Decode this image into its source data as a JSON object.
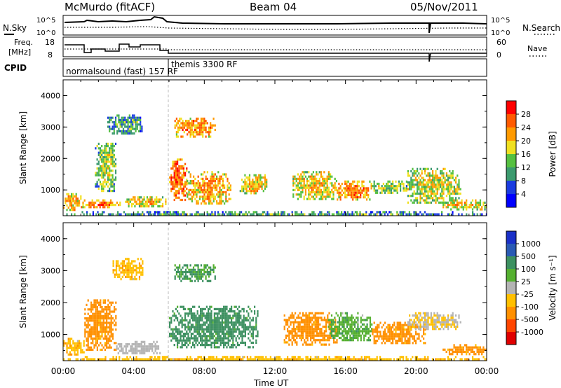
{
  "header": {
    "station": "McMurdo (fitACF)",
    "beam": "Beam 04",
    "date": "05/Nov/2011"
  },
  "noise_panel": {
    "left_label": "N.Sky",
    "right_label": "N.Search",
    "left_ticks": [
      "10^5",
      "10^0"
    ],
    "right_ticks": [
      "10^5",
      "10^0"
    ]
  },
  "freq_panel": {
    "left_label_1": "Freq.",
    "left_label_2": "[MHz]",
    "left_ticks": [
      "18",
      "8"
    ],
    "right_ticks": [
      "60",
      "0"
    ],
    "right_label": "Nave"
  },
  "cpid_panel": {
    "label": "CPID",
    "modes": [
      {
        "name": "normalsound (fast) 157 RF"
      },
      {
        "name": "themis 3300 RF"
      }
    ]
  },
  "colors": {
    "power": [
      "#0000ff",
      "#1a3ce0",
      "#3b9a6e",
      "#55c040",
      "#f0e020",
      "#ff9a00",
      "#ff5a00",
      "#ff0000"
    ],
    "velocity": [
      "#e00000",
      "#ff4500",
      "#ff9000",
      "#ffc000",
      "#b4b4b4",
      "#55b030",
      "#3c9060",
      "#2a5ab4",
      "#1a30c8"
    ]
  },
  "chart_data": [
    {
      "type": "heatmap",
      "title": "",
      "xlabel": "",
      "ylabel": "Slant Range [km]",
      "colorbar_label": "Power [dB]",
      "colorbar_ticks": [
        "28",
        "24",
        "20",
        "16",
        "12",
        "8",
        "4"
      ],
      "x_ticks": [
        "00:00",
        "04:00",
        "08:00",
        "12:00",
        "16:00",
        "20:00",
        "00:00"
      ],
      "y_ticks": [
        "1000",
        "2000",
        "3000",
        "4000"
      ],
      "xlim": [
        0,
        24
      ],
      "ylim": [
        180,
        4500
      ],
      "scatter_patches": [
        {
          "t0": 0.0,
          "t1": 1.0,
          "r0": 400,
          "r1": 900,
          "dB": 16
        },
        {
          "t0": 1.0,
          "t1": 3.2,
          "r0": 450,
          "r1": 700,
          "dB": 18
        },
        {
          "t0": 1.8,
          "t1": 3.0,
          "r0": 1000,
          "r1": 2500,
          "dB": 10
        },
        {
          "t0": 2.5,
          "t1": 4.5,
          "r0": 2800,
          "r1": 3400,
          "dB": 6
        },
        {
          "t0": 3.5,
          "t1": 5.8,
          "r0": 500,
          "r1": 800,
          "dB": 14
        },
        {
          "t0": 6.0,
          "t1": 7.0,
          "r0": 700,
          "r1": 2000,
          "dB": 20
        },
        {
          "t0": 6.3,
          "t1": 8.6,
          "r0": 2700,
          "r1": 3300,
          "dB": 18
        },
        {
          "t0": 7.0,
          "t1": 9.5,
          "r0": 600,
          "r1": 1600,
          "dB": 16
        },
        {
          "t0": 10.0,
          "t1": 11.5,
          "r0": 900,
          "r1": 1500,
          "dB": 14
        },
        {
          "t0": 13.0,
          "t1": 15.5,
          "r0": 700,
          "r1": 1600,
          "dB": 14
        },
        {
          "t0": 15.5,
          "t1": 17.5,
          "r0": 700,
          "r1": 1300,
          "dB": 18
        },
        {
          "t0": 17.5,
          "t1": 19.5,
          "r0": 900,
          "r1": 1300,
          "dB": 10
        },
        {
          "t0": 19.5,
          "t1": 22.5,
          "r0": 600,
          "r1": 1700,
          "dB": 12
        },
        {
          "t0": 21.5,
          "t1": 24.0,
          "r0": 400,
          "r1": 700,
          "dB": 14
        },
        {
          "t0": 0.0,
          "t1": 24.0,
          "r0": 200,
          "r1": 330,
          "dB": 6
        }
      ]
    },
    {
      "type": "heatmap",
      "title": "",
      "xlabel": "Time UT",
      "ylabel": "Slant Range [km]",
      "colorbar_label": "Velocity [m s⁻¹]",
      "colorbar_ticks": [
        "1000",
        "500",
        "100",
        "25",
        "-25",
        "-100",
        "-500",
        "-1000"
      ],
      "x_ticks": [
        "00:00",
        "04:00",
        "08:00",
        "12:00",
        "16:00",
        "20:00",
        "00:00"
      ],
      "y_ticks": [
        "1000",
        "2000",
        "3000",
        "4000"
      ],
      "xlim": [
        0,
        24
      ],
      "ylim": [
        180,
        4500
      ],
      "scatter_patches": [
        {
          "t0": 0.0,
          "t1": 1.2,
          "r0": 400,
          "r1": 900,
          "v": -60
        },
        {
          "t0": 1.2,
          "t1": 3.0,
          "r0": 500,
          "r1": 2100,
          "v": -150
        },
        {
          "t0": 3.0,
          "t1": 5.5,
          "r0": 400,
          "r1": 800,
          "v": 0
        },
        {
          "t0": 2.8,
          "t1": 4.5,
          "r0": 2700,
          "r1": 3400,
          "v": -60
        },
        {
          "t0": 6.0,
          "t1": 11.0,
          "r0": 600,
          "r1": 1900,
          "v": 150
        },
        {
          "t0": 6.3,
          "t1": 8.6,
          "r0": 2700,
          "r1": 3200,
          "v": 100
        },
        {
          "t0": 12.5,
          "t1": 15.5,
          "r0": 700,
          "r1": 1700,
          "v": -150
        },
        {
          "t0": 15.0,
          "t1": 17.5,
          "r0": 800,
          "r1": 1700,
          "v": 60
        },
        {
          "t0": 17.5,
          "t1": 20.5,
          "r0": 700,
          "r1": 1400,
          "v": -150
        },
        {
          "t0": 19.5,
          "t1": 22.5,
          "r0": 1200,
          "r1": 1700,
          "v": -20
        },
        {
          "t0": 21.5,
          "t1": 24.0,
          "r0": 400,
          "r1": 700,
          "v": -150
        },
        {
          "t0": 0.0,
          "t1": 24.0,
          "r0": 200,
          "r1": 330,
          "v": -60
        }
      ]
    }
  ]
}
